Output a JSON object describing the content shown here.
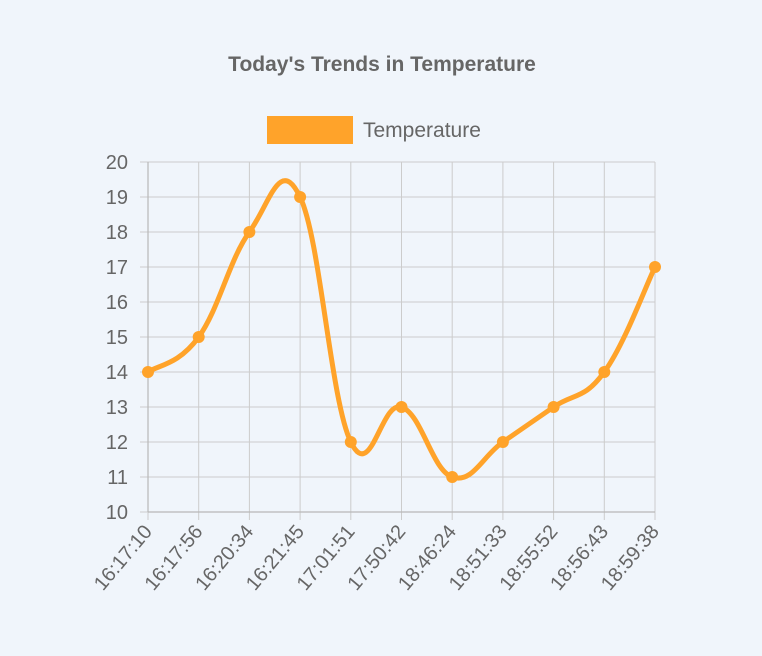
{
  "chart_data": {
    "type": "line",
    "title": "Today's Trends in Temperature",
    "xlabel": "",
    "ylabel": "",
    "legend": "top",
    "grid": true,
    "categories": [
      "16:17:10",
      "16:17:56",
      "16:20:34",
      "16:21:45",
      "17:01:51",
      "17:50:42",
      "18:46:24",
      "18:51:33",
      "18:55:52",
      "18:56:43",
      "18:59:38"
    ],
    "series": [
      {
        "name": "Temperature",
        "color": "#ffa32a",
        "values": [
          14,
          15,
          18,
          19,
          12,
          13,
          11,
          12,
          13,
          14,
          17
        ]
      }
    ],
    "ylim": [
      10,
      20
    ],
    "yticks": [
      10,
      11,
      12,
      13,
      14,
      15,
      16,
      17,
      18,
      19,
      20
    ]
  }
}
